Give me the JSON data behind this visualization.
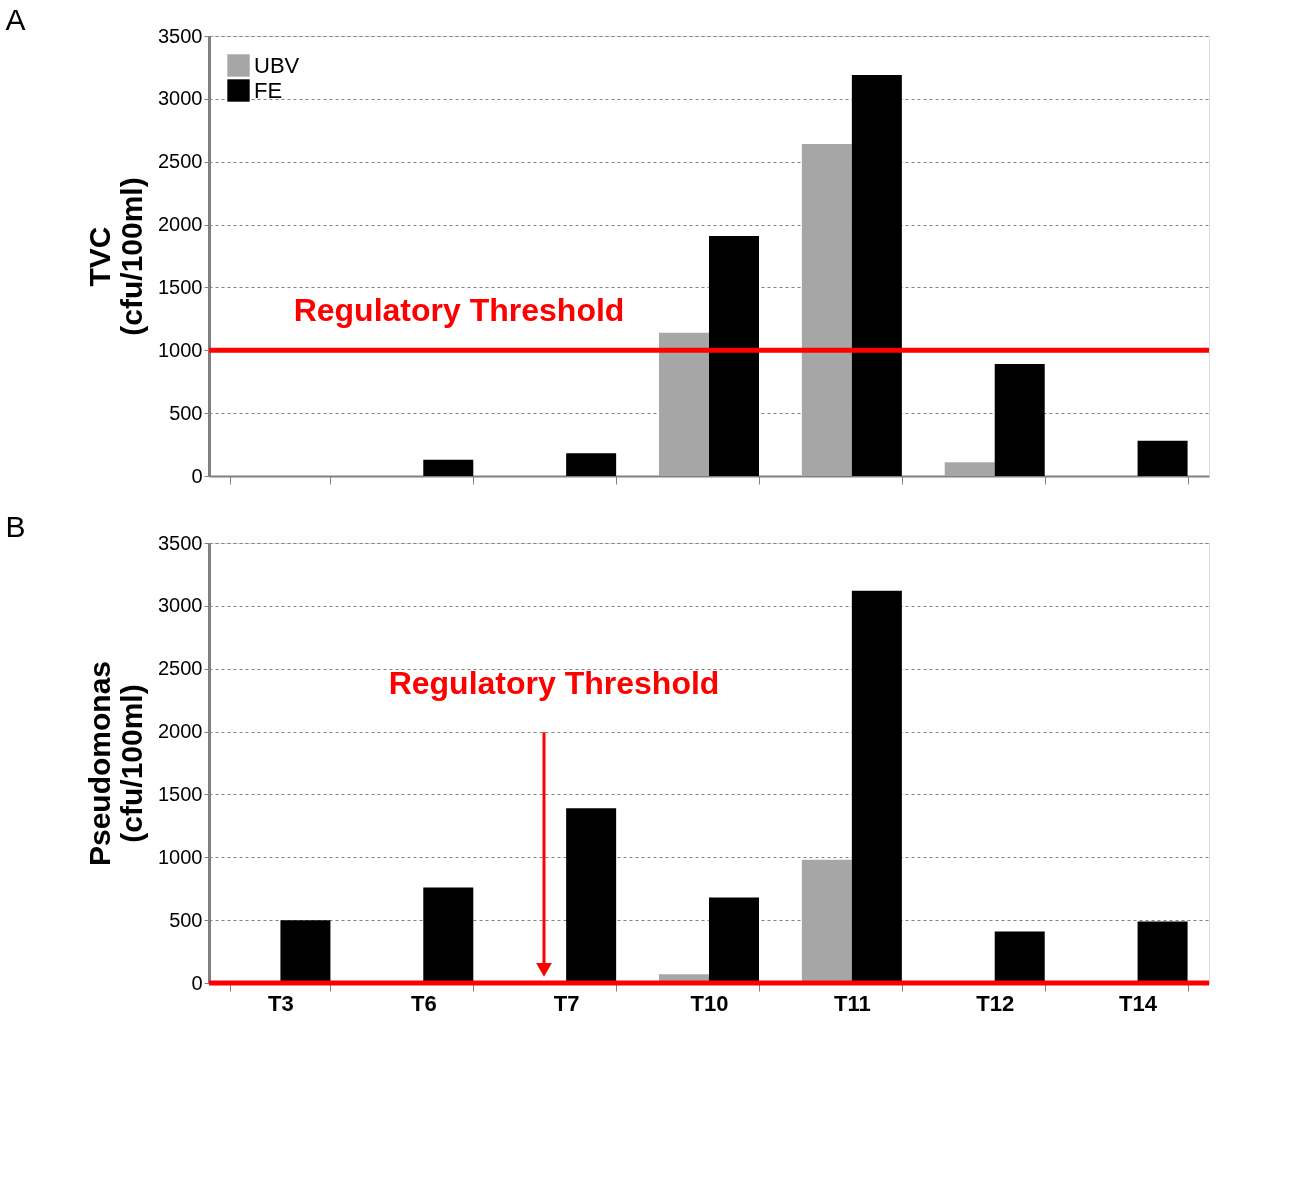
{
  "chart_data": [
    {
      "type": "bar",
      "annotations": [
        "A"
      ],
      "ylabel": "TVC (cfu/100ml)",
      "categories": [
        null,
        null,
        null,
        null,
        null,
        null,
        null
      ],
      "series": [
        {
          "name": "UBV",
          "color": "#a6a6a6",
          "values": [
            0,
            0,
            0,
            1140,
            2640,
            110,
            0
          ]
        },
        {
          "name": "FE",
          "color": "#000000",
          "values": [
            0,
            130,
            180,
            1910,
            3190,
            890,
            280
          ]
        }
      ],
      "ylim": [
        0,
        3500
      ],
      "yticks": [
        0,
        500,
        1000,
        1500,
        2000,
        2500,
        3000,
        3500
      ],
      "ref_lines": [
        {
          "axis": "y",
          "value": 1000,
          "label": "Regulatory Threshold",
          "color": "#ff0000"
        }
      ],
      "grid": "y",
      "legend": "top left",
      "tick_labels": "y"
    },
    {
      "type": "bar",
      "annotations": [
        "B"
      ],
      "ylabel": "Pseudomonas (cfu/100ml)",
      "categories": [
        "T3",
        "T6",
        "T7",
        "T10",
        "T11",
        "T12",
        "T14"
      ],
      "series": [
        {
          "name": "UBV",
          "color": "#a6a6a6",
          "values": [
            0,
            0,
            0,
            70,
            980,
            0,
            0
          ]
        },
        {
          "name": "FE",
          "color": "#000000",
          "values": [
            500,
            760,
            1390,
            680,
            3120,
            410,
            490
          ]
        }
      ],
      "ylim": [
        0,
        3500
      ],
      "yticks": [
        0,
        500,
        1000,
        1500,
        2000,
        2500,
        3000,
        3500
      ],
      "ref_lines": [
        {
          "axis": "y",
          "value": 0,
          "label": "Regulatory Threshold",
          "color": "#ff0000"
        }
      ],
      "grid": "y",
      "legend": "top left"
    }
  ]
}
